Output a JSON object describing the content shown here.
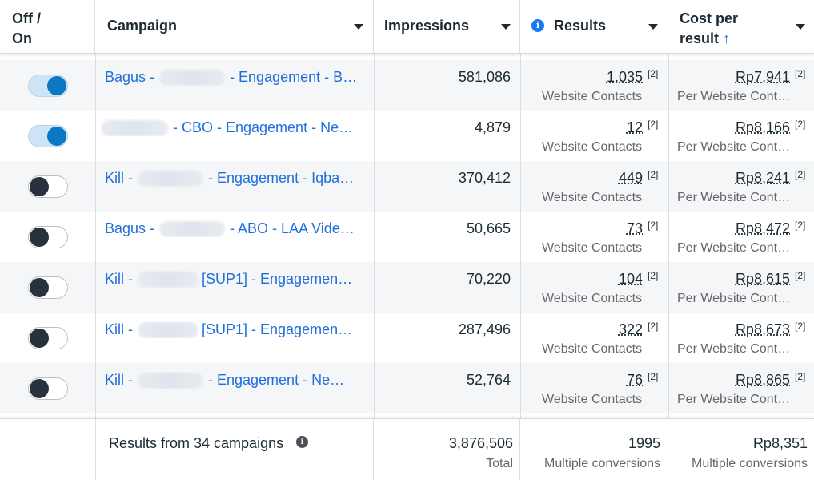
{
  "header": {
    "toggle_col": "Off / On",
    "campaign": "Campaign",
    "impressions": "Impressions",
    "results": "Results",
    "cost_per_result": "Cost per result",
    "sort_arrow": "↑",
    "info_glyph": "i"
  },
  "rows": [
    {
      "on": true,
      "camp_pre": "Bagus -",
      "camp_post": "- Engagement - B…",
      "impressions": "581,086",
      "results": "1,035",
      "results_sup": "[2]",
      "results_sub": "Website Contacts",
      "cost": "Rp7,941",
      "cost_sup": "[2]",
      "cost_sub": "Per Website Cont…"
    },
    {
      "on": true,
      "camp_pre": "",
      "camp_post": "- CBO - Engagement - Ne…",
      "impressions": "4,879",
      "results": "12",
      "results_sup": "[2]",
      "results_sub": "Website Contacts",
      "cost": "Rp8,166",
      "cost_sup": "[2]",
      "cost_sub": "Per Website Cont…"
    },
    {
      "on": false,
      "camp_pre": "Kill -",
      "camp_post": "- Engagement - Iqba…",
      "impressions": "370,412",
      "results": "449",
      "results_sup": "[2]",
      "results_sub": "Website Contacts",
      "cost": "Rp8,241",
      "cost_sup": "[2]",
      "cost_sub": "Per Website Cont…"
    },
    {
      "on": false,
      "camp_pre": "Bagus -",
      "camp_post": "- ABO - LAA Vide…",
      "impressions": "50,665",
      "results": "73",
      "results_sup": "[2]",
      "results_sub": "Website Contacts",
      "cost": "Rp8,472",
      "cost_sup": "[2]",
      "cost_sub": "Per Website Cont…"
    },
    {
      "on": false,
      "camp_pre": "Kill -",
      "camp_post": "[SUP1] - Engagemen…",
      "impressions": "70,220",
      "results": "104",
      "results_sup": "[2]",
      "results_sub": "Website Contacts",
      "cost": "Rp8,615",
      "cost_sup": "[2]",
      "cost_sub": "Per Website Cont…"
    },
    {
      "on": false,
      "camp_pre": "Kill -",
      "camp_post": "[SUP1] - Engagemen…",
      "impressions": "287,496",
      "results": "322",
      "results_sup": "[2]",
      "results_sub": "Website Contacts",
      "cost": "Rp8,673",
      "cost_sup": "[2]",
      "cost_sub": "Per Website Cont…"
    },
    {
      "on": false,
      "camp_pre": "Kill -",
      "camp_post": "- Engagement - Ne…",
      "impressions": "52,764",
      "results": "76",
      "results_sup": "[2]",
      "results_sub": "Website Contacts",
      "cost": "Rp8,865",
      "cost_sup": "[2]",
      "cost_sub": "Per Website Cont…"
    }
  ],
  "footer": {
    "label": "Results from 34 campaigns",
    "info_glyph": "i",
    "impressions": "3,876,506",
    "impressions_sub": "Total",
    "results": "1995",
    "results_sub": "Multiple conversions",
    "cost": "Rp8,351",
    "cost_sub": "Multiple conversions"
  },
  "colors": {
    "link": "#216fdb",
    "toggle_on": "#0a78c2",
    "toggle_off_knob": "#27323d",
    "accent": "#1877f2"
  }
}
